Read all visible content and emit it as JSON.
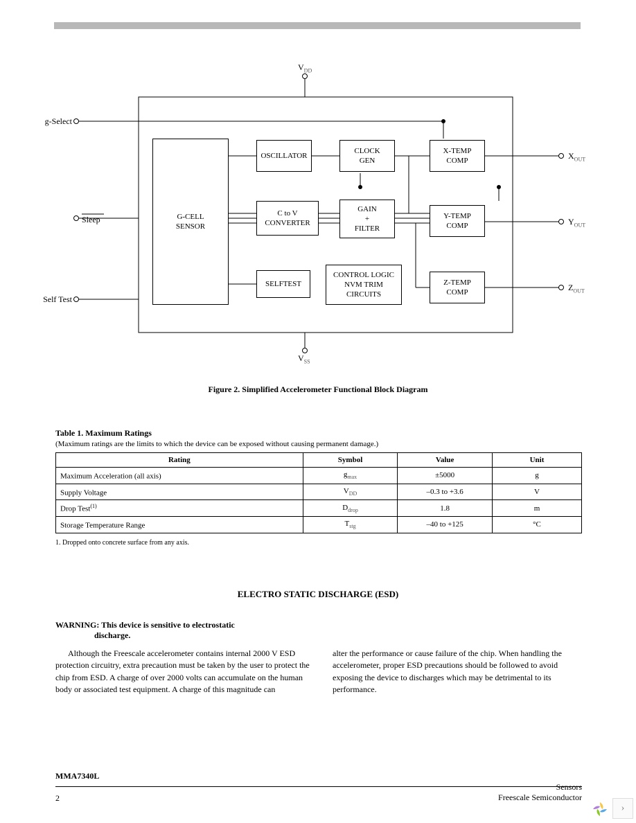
{
  "diagram": {
    "pins": {
      "vdd": "V",
      "vdd_sub": "DD",
      "vss": "V",
      "vss_sub": "SS",
      "gselect": "g-Select",
      "sleep": "Sleep",
      "selftest": "Self Test",
      "xout": "X",
      "xout_sub": "OUT",
      "yout": "Y",
      "yout_sub": "OUT",
      "zout": "Z",
      "zout_sub": "OUT"
    },
    "blocks": {
      "gcell": "G-CELL\nSENSOR",
      "oscillator": "OSCILLATOR",
      "clockgen": "CLOCK\nGEN",
      "ctov": "C to V\nCONVERTER",
      "gainfilter": "GAIN\n+\nFILTER",
      "selftest": "SELFTEST",
      "control": "CONTROL LOGIC\nNVM TRIM\nCIRCUITS",
      "xtemp": "X-TEMP\nCOMP",
      "ytemp": "Y-TEMP\nCOMP",
      "ztemp": "Z-TEMP\nCOMP"
    },
    "caption": "Figure 2. Simplified Accelerometer Functional Block Diagram",
    "colors": {
      "stroke": "#000000",
      "bg": "#ffffff"
    }
  },
  "table": {
    "title": "Table 1. Maximum Ratings",
    "subtitle": "(Maximum ratings are the limits to which the device can be exposed without causing permanent damage.)",
    "headers": [
      "Rating",
      "Symbol",
      "Value",
      "Unit"
    ],
    "rows": [
      {
        "rating": "Maximum Acceleration (all axis)",
        "symbol": "g",
        "symbol_sub": "max",
        "value": "±5000",
        "unit": "g",
        "note": ""
      },
      {
        "rating": "Supply Voltage",
        "symbol": "V",
        "symbol_sub": "DD",
        "value": "–0.3 to +3.6",
        "unit": "V",
        "note": ""
      },
      {
        "rating": "Drop Test",
        "symbol": "D",
        "symbol_sub": "drop",
        "value": "1.8",
        "unit": "m",
        "note": "(1)"
      },
      {
        "rating": "Storage Temperature Range",
        "symbol": "T",
        "symbol_sub": "stg",
        "value": "–40 to +125",
        "unit": "°C",
        "note": ""
      }
    ],
    "footnote": "1. Dropped onto concrete surface from any axis.",
    "col_widths": [
      "47%",
      "18%",
      "18%",
      "17%"
    ]
  },
  "esd": {
    "title": "ELECTRO STATIC DISCHARGE (ESD)",
    "warning_line1": "WARNING: This device is sensitive to electrostatic",
    "warning_line2": "discharge.",
    "col1": "Although the Freescale accelerometer contains internal 2000 V ESD protection circuitry, extra precaution must be taken by the user to protect the chip from ESD. A charge of over 2000 volts can accumulate on the human body or associated test equipment. A charge of this magnitude can",
    "col2": "alter the performance or cause failure of the chip. When handling the accelerometer, proper ESD precautions should be followed to avoid exposing the device to discharges which may be detrimental to its performance."
  },
  "footer": {
    "part": "MMA7340L",
    "page": "2",
    "right_line1": "Sensors",
    "right_line2": "Freescale Semiconductor"
  },
  "nav": {
    "icon_colors": [
      "#f7c948",
      "#5aa9e6",
      "#8ac926",
      "#b07fd9"
    ],
    "next_glyph": "›"
  }
}
